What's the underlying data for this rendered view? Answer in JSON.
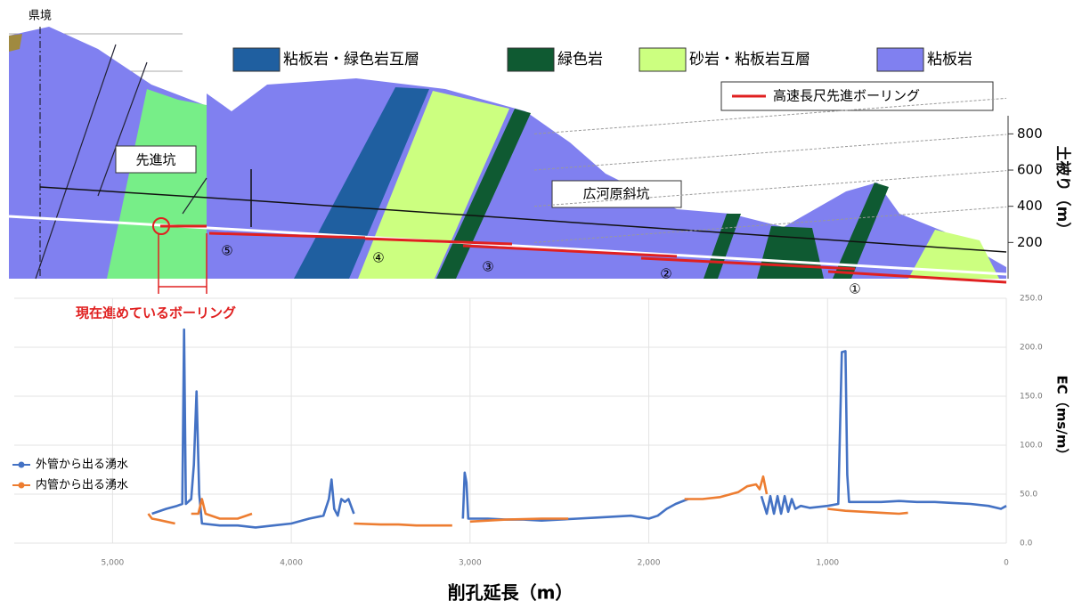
{
  "chart_data": {
    "type": "line",
    "x_label": "削孔延長（m）",
    "y_label": "EC（ms/m）",
    "xlim": [
      5550,
      0
    ],
    "ylim": [
      0,
      250
    ],
    "xticks": [
      {
        "value": 5000,
        "label": "5,000"
      },
      {
        "value": 4000,
        "label": "4,000"
      },
      {
        "value": 3000,
        "label": "3,000"
      },
      {
        "value": 2000,
        "label": "2,000"
      },
      {
        "value": 1000,
        "label": "1,000"
      },
      0
    ],
    "yticks": [
      {
        "value": 0,
        "label": "0.0"
      },
      {
        "value": 50,
        "label": "50.0"
      },
      {
        "value": 100,
        "label": "100.0"
      },
      {
        "value": 150,
        "label": "150.0"
      },
      {
        "value": 200,
        "label": "200.0"
      },
      {
        "value": 250,
        "label": "250.0"
      }
    ],
    "grid": true,
    "series": [
      {
        "name": "外管から出る湧水",
        "color": "#4472c4",
        "x": [
          4780,
          4700,
          4640,
          4610,
          4600,
          4590,
          4560,
          4545,
          4530,
          4515,
          4500,
          4400,
          4300,
          4200,
          4100,
          4000,
          3900,
          3820,
          3790,
          3775,
          3760,
          3740,
          3720,
          3700,
          3680,
          3650,
          null,
          3040,
          3030,
          3020,
          3010,
          2900,
          2800,
          2700,
          2600,
          2500,
          2400,
          2300,
          2200,
          2100,
          2000,
          1950,
          1900,
          1850,
          1780,
          null,
          1370,
          1340,
          1320,
          1300,
          1280,
          1260,
          1240,
          1220,
          1200,
          1180,
          1150,
          1100,
          1000,
          940,
          920,
          900,
          890,
          880,
          800,
          700,
          600,
          500,
          400,
          300,
          200,
          100,
          30,
          0
        ],
        "values": [
          30,
          35,
          38,
          40,
          218,
          40,
          45,
          80,
          155,
          50,
          20,
          18,
          18,
          16,
          18,
          20,
          25,
          28,
          45,
          65,
          35,
          28,
          45,
          42,
          45,
          30,
          null,
          25,
          72,
          62,
          25,
          25,
          24,
          24,
          23,
          24,
          25,
          26,
          27,
          28,
          25,
          28,
          35,
          40,
          45,
          null,
          48,
          30,
          48,
          30,
          48,
          30,
          48,
          32,
          45,
          35,
          38,
          36,
          38,
          40,
          195,
          196,
          70,
          42,
          42,
          42,
          43,
          42,
          42,
          41,
          40,
          38,
          35,
          38
        ]
      },
      {
        "name": "内管から出る湧水",
        "color": "#ed7d31",
        "x": [
          4800,
          4780,
          4750,
          4700,
          4650,
          null,
          4560,
          4520,
          4500,
          4480,
          4400,
          4300,
          4220,
          null,
          3650,
          3500,
          3400,
          3300,
          3200,
          3100,
          null,
          3000,
          2800,
          2600,
          2450,
          null,
          1800,
          1700,
          1600,
          1500,
          1450,
          1400,
          1380,
          1360,
          1340,
          null,
          1000,
          900,
          800,
          700,
          600,
          550
        ],
        "values": [
          30,
          25,
          24,
          22,
          20,
          null,
          30,
          30,
          45,
          30,
          25,
          25,
          30,
          null,
          20,
          19,
          19,
          18,
          18,
          18,
          null,
          22,
          24,
          25,
          25,
          null,
          45,
          45,
          47,
          52,
          58,
          60,
          55,
          68,
          50,
          null,
          35,
          33,
          32,
          31,
          30,
          31
        ]
      }
    ]
  },
  "cross_section": {
    "prefecture_border": "県境",
    "legend": [
      {
        "name": "粘板岩・緑色岩互層",
        "color": "#1f5fa0"
      },
      {
        "name": "緑色岩",
        "color": "#0f5a32"
      },
      {
        "name": "砂岩・粘板岩互層",
        "color": "#ccff80"
      },
      {
        "name": "粘板岩",
        "color": "#8080f0"
      }
    ],
    "boring_legend": "高速長尺先進ボーリング",
    "pilot_tunnel": "先進坑",
    "inclined_shaft": "広河原斜坑",
    "current_boring": "現在進めているボーリング",
    "boring_labels": [
      "①",
      "②",
      "③",
      "④",
      "⑤"
    ],
    "axis_title": "土被り（m）",
    "yticks": [
      200,
      400,
      600,
      800
    ]
  }
}
